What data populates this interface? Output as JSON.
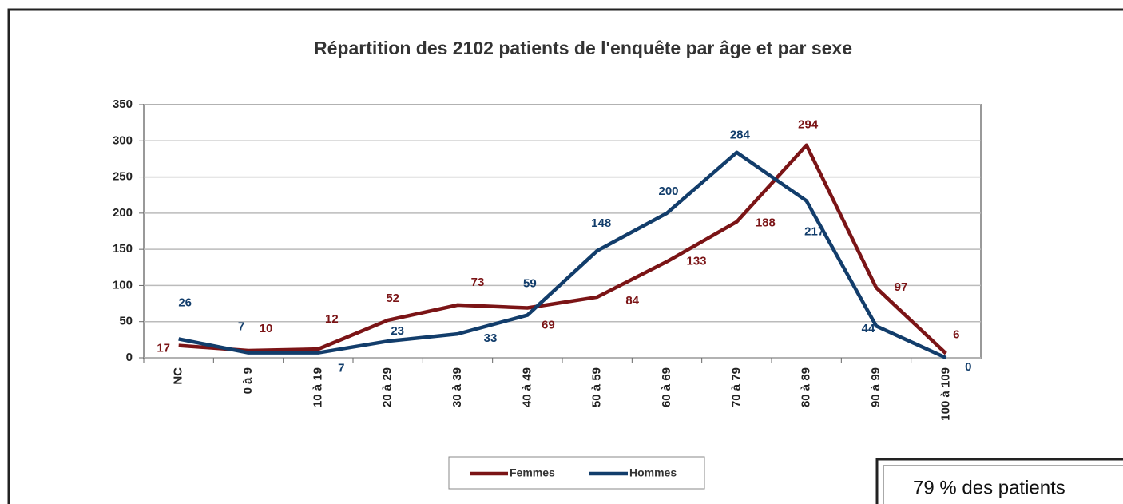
{
  "chart_data": {
    "type": "line",
    "title": "Répartition des 2102 patients de l'enquête par âge et par sexe",
    "categories": [
      "NC",
      "0 à 9",
      "10 à 19",
      "20 à 29",
      "30 à 39",
      "40 à 49",
      "50 à 59",
      "60 à 69",
      "70 à 79",
      "80 à 89",
      "90 à 99",
      "100 à 109"
    ],
    "series": [
      {
        "name": "Femmes",
        "color": "#7b1416",
        "values": [
          17,
          10,
          12,
          52,
          73,
          69,
          84,
          133,
          188,
          294,
          97,
          6
        ]
      },
      {
        "name": "Hommes",
        "color": "#123d6b",
        "values": [
          26,
          7,
          7,
          23,
          33,
          59,
          148,
          200,
          284,
          217,
          44,
          0
        ]
      }
    ],
    "ylim": [
      0,
      350
    ],
    "yticks": [
      0,
      50,
      100,
      150,
      200,
      250,
      300,
      350
    ],
    "grid": true,
    "legend": "bottom",
    "annotation": "79 % des patients"
  }
}
